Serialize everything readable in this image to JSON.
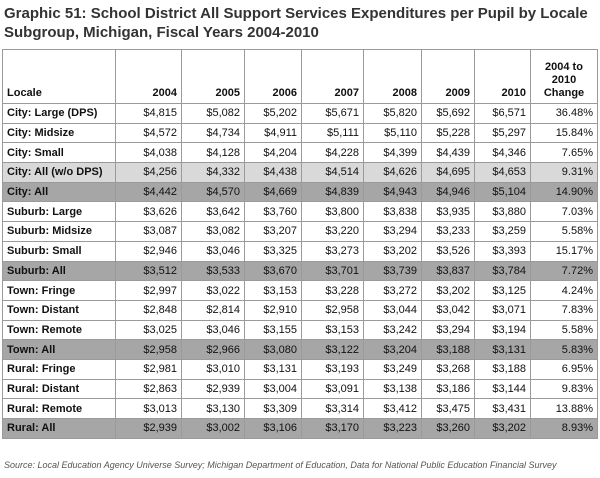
{
  "header": {
    "title": "Graphic 51: School District All Support Services Expenditures per Pupil by Locale Subgroup, Michigan, Fiscal Years 2004-2010"
  },
  "table": {
    "columns": [
      "Locale",
      "2004",
      "2005",
      "2006",
      "2007",
      "2008",
      "2009",
      "2010",
      "2004 to 2010 Change"
    ],
    "rows": [
      [
        "City: Large (DPS)",
        "$4,815",
        "$5,082",
        "$5,202",
        "$5,671",
        "$5,820",
        "$5,692",
        "$6,571",
        "36.48%"
      ],
      [
        "City: Midsize",
        "$4,572",
        "$4,734",
        "$4,911",
        "$5,111",
        "$5,110",
        "$5,228",
        "$5,297",
        "15.84%"
      ],
      [
        "City: Small",
        "$4,038",
        "$4,128",
        "$4,204",
        "$4,228",
        "$4,399",
        "$4,439",
        "$4,346",
        "7.65%"
      ],
      [
        "City: All (w/o DPS)",
        "$4,256",
        "$4,332",
        "$4,438",
        "$4,514",
        "$4,626",
        "$4,695",
        "$4,653",
        "9.31%"
      ],
      [
        "City: All",
        "$4,442",
        "$4,570",
        "$4,669",
        "$4,839",
        "$4,943",
        "$4,946",
        "$5,104",
        "14.90%"
      ],
      [
        "Suburb: Large",
        "$3,626",
        "$3,642",
        "$3,760",
        "$3,800",
        "$3,838",
        "$3,935",
        "$3,880",
        "7.03%"
      ],
      [
        "Suburb: Midsize",
        "$3,087",
        "$3,082",
        "$3,207",
        "$3,220",
        "$3,294",
        "$3,233",
        "$3,259",
        "5.58%"
      ],
      [
        "Suburb: Small",
        "$2,946",
        "$3,046",
        "$3,325",
        "$3,273",
        "$3,202",
        "$3,526",
        "$3,393",
        "15.17%"
      ],
      [
        "Suburb: All",
        "$3,512",
        "$3,533",
        "$3,670",
        "$3,701",
        "$3,739",
        "$3,837",
        "$3,784",
        "7.72%"
      ],
      [
        "Town: Fringe",
        "$2,997",
        "$3,022",
        "$3,153",
        "$3,228",
        "$3,272",
        "$3,202",
        "$3,125",
        "4.24%"
      ],
      [
        "Town: Distant",
        "$2,848",
        "$2,814",
        "$2,910",
        "$2,958",
        "$3,044",
        "$3,042",
        "$3,071",
        "7.83%"
      ],
      [
        "Town: Remote",
        "$3,025",
        "$3,046",
        "$3,155",
        "$3,153",
        "$3,242",
        "$3,294",
        "$3,194",
        "5.58%"
      ],
      [
        "Town: All",
        "$2,958",
        "$2,966",
        "$3,080",
        "$3,122",
        "$3,204",
        "$3,188",
        "$3,131",
        "5.83%"
      ],
      [
        "Rural: Fringe",
        "$2,981",
        "$3,010",
        "$3,131",
        "$3,193",
        "$3,249",
        "$3,268",
        "$3,188",
        "6.95%"
      ],
      [
        "Rural: Distant",
        "$2,863",
        "$2,939",
        "$3,004",
        "$3,091",
        "$3,138",
        "$3,186",
        "$3,144",
        "9.83%"
      ],
      [
        "Rural: Remote",
        "$3,013",
        "$3,130",
        "$3,309",
        "$3,314",
        "$3,412",
        "$3,475",
        "$3,431",
        "13.88%"
      ],
      [
        "Rural: All",
        "$2,939",
        "$3,002",
        "$3,106",
        "$3,170",
        "$3,223",
        "$3,260",
        "$3,202",
        "8.93%"
      ]
    ]
  },
  "footer": {
    "source": "Source: Local Education Agency Universe Survey; Michigan Department of Education, Data for National Public Education Financial Survey"
  }
}
